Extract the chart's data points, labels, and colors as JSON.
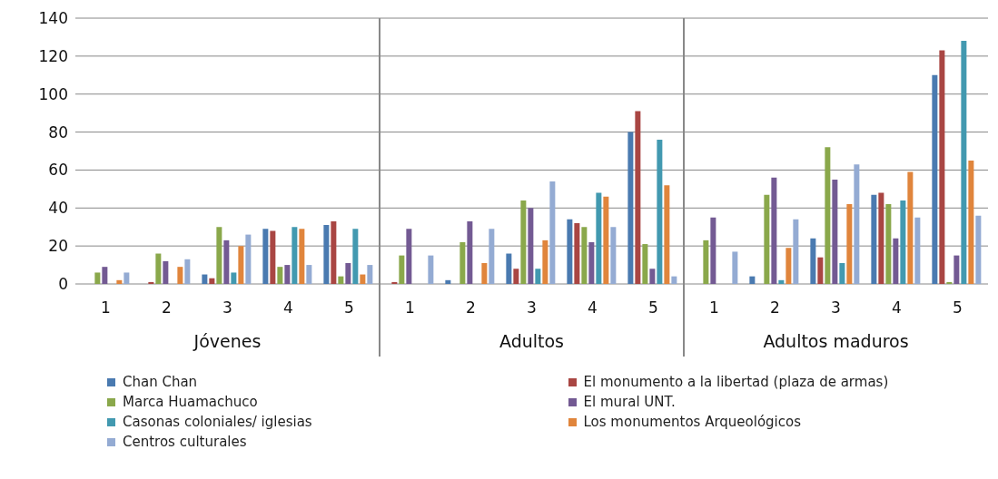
{
  "chart_data": {
    "type": "bar",
    "categories": [
      "1",
      "2",
      "3",
      "4",
      "5",
      "1",
      "2",
      "3",
      "4",
      "5",
      "1",
      "2",
      "3",
      "4",
      "5"
    ],
    "annotations": [
      "Jóvenes",
      "Adultos",
      "Adultos maduros"
    ],
    "series": [
      {
        "name": "Chan Chan",
        "color": "#4a7ab0",
        "values": [
          0,
          0,
          5,
          29,
          31,
          0,
          2,
          16,
          34,
          80,
          0,
          4,
          24,
          47,
          110
        ]
      },
      {
        "name": "El monumento a la libertad (plaza de armas)",
        "color": "#a94643",
        "values": [
          0,
          1,
          3,
          28,
          33,
          1,
          0,
          8,
          32,
          91,
          0,
          0,
          14,
          48,
          123
        ]
      },
      {
        "name": "Marca Huamachuco",
        "color": "#8aa84b",
        "values": [
          6,
          16,
          30,
          9,
          4,
          15,
          22,
          44,
          30,
          21,
          23,
          47,
          72,
          42,
          1
        ]
      },
      {
        "name": "El mural UNT.",
        "color": "#735a93",
        "values": [
          9,
          12,
          23,
          10,
          11,
          29,
          33,
          40,
          22,
          8,
          35,
          56,
          55,
          24,
          15
        ]
      },
      {
        "name": "Casonas coloniales/ iglesias",
        "color": "#4299b0",
        "values": [
          0,
          0,
          6,
          30,
          29,
          0,
          0,
          8,
          48,
          76,
          0,
          2,
          11,
          44,
          128
        ]
      },
      {
        "name": "Los monumentos Arqueológicos",
        "color": "#e0853c",
        "values": [
          2,
          9,
          20,
          29,
          5,
          0,
          11,
          23,
          46,
          52,
          0,
          19,
          42,
          59,
          65
        ]
      },
      {
        "name": "Centros culturales",
        "color": "#94abd3",
        "values": [
          6,
          13,
          26,
          10,
          10,
          15,
          29,
          54,
          30,
          4,
          17,
          34,
          63,
          35,
          36
        ]
      }
    ],
    "ylim": [
      0,
      140
    ],
    "yticks": [
      0,
      20,
      40,
      60,
      80,
      100,
      120,
      140
    ],
    "grid": "y",
    "legend": "bottom"
  }
}
